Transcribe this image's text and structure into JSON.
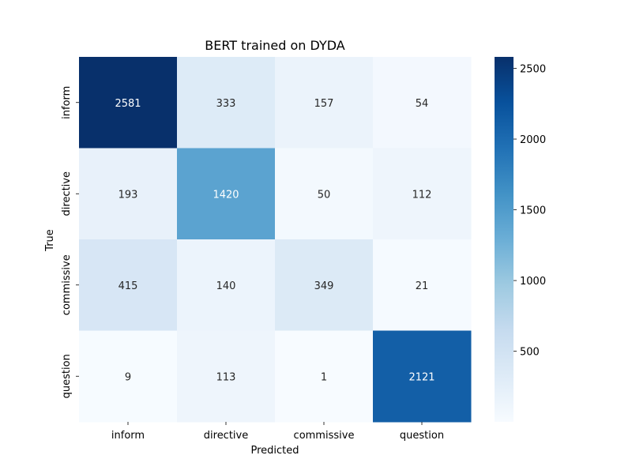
{
  "chart_data": {
    "type": "heatmap",
    "title": "BERT trained on DYDA",
    "xlabel": "Predicted",
    "ylabel": "True",
    "x_categories": [
      "inform",
      "directive",
      "commissive",
      "question"
    ],
    "y_categories": [
      "inform",
      "directive",
      "commissive",
      "question"
    ],
    "values": [
      [
        2581,
        333,
        157,
        54
      ],
      [
        193,
        1420,
        50,
        112
      ],
      [
        415,
        140,
        349,
        21
      ],
      [
        9,
        113,
        1,
        2121
      ]
    ],
    "colormap": "Blues",
    "vmin": 1,
    "vmax": 2581,
    "colorbar_ticks": [
      500,
      1000,
      1500,
      2000,
      2500
    ]
  }
}
